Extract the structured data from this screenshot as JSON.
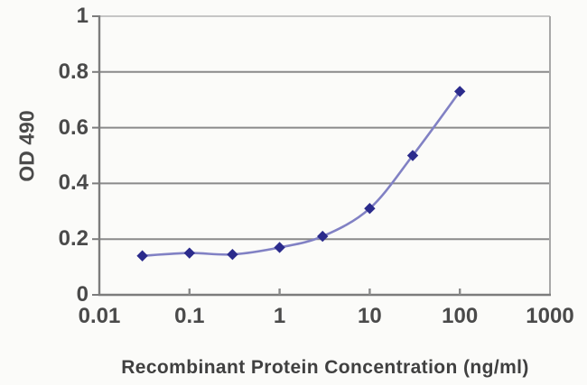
{
  "chart_data": {
    "type": "line",
    "title": "",
    "xlabel": "Recombinant Protein Concentration (ng/ml)",
    "ylabel": "OD 490",
    "x_scale": "log",
    "xlim": [
      0.01,
      1000
    ],
    "ylim": [
      0,
      1
    ],
    "x_ticks": [
      "0.01",
      "0.1",
      "1",
      "10",
      "100",
      "1000"
    ],
    "x_tick_values": [
      0.01,
      0.1,
      1,
      10,
      100,
      1000
    ],
    "y_ticks": [
      "0",
      "0.2",
      "0.4",
      "0.6",
      "0.8",
      "1"
    ],
    "y_tick_values": [
      0,
      0.2,
      0.4,
      0.6,
      0.8,
      1
    ],
    "grid": "horizontal",
    "legend": "none",
    "marker_shape": "diamond",
    "series": [
      {
        "name": "OD 490",
        "x": [
          0.03,
          0.1,
          0.3,
          1,
          3,
          10,
          30,
          100
        ],
        "y": [
          0.14,
          0.15,
          0.145,
          0.17,
          0.21,
          0.31,
          0.5,
          0.73
        ]
      }
    ],
    "colors": {
      "line": "#8181c4",
      "marker": "#2b2b8c",
      "grid": "#8a8a8a",
      "grid_top": "#c6c6c6",
      "axis": "#7c7c7c",
      "border_right": "#a8a8a8",
      "text": "#4a4a4a"
    }
  }
}
